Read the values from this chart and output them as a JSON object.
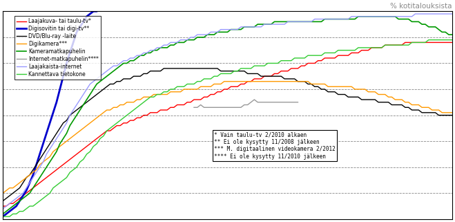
{
  "title": "% kotitalouksista",
  "ylim": [
    0,
    80
  ],
  "xlim": [
    0,
    134
  ],
  "yticks": [
    10,
    20,
    30,
    40,
    50,
    60,
    70,
    80
  ],
  "legend_entries": [
    {
      "label": "Laajakuva- tai taulu-tv*",
      "color": "#FF0000",
      "lw": 1.0
    },
    {
      "label": "Digisovitin tai digi-tv**",
      "color": "#0000CC",
      "lw": 2.0
    },
    {
      "label": "DVD/Blu-ray -laite",
      "color": "#000000",
      "lw": 1.0
    },
    {
      "label": "Digikamera***",
      "color": "#FF9900",
      "lw": 1.0
    },
    {
      "label": "Kameramatkapuhelin",
      "color": "#009900",
      "lw": 1.2
    },
    {
      "label": "Internet-matkapuhelin****",
      "color": "#999999",
      "lw": 1.0
    },
    {
      "label": "Laajakaista-internet",
      "color": "#9999FF",
      "lw": 1.0
    },
    {
      "label": "Kannettava tietokone",
      "color": "#33CC33",
      "lw": 1.0
    }
  ],
  "annotations": [
    "* Vain taulu-tv 2/2010 alkaen",
    "** Ei ole kysytty 11/2008 jälkeen",
    "*** M. digitaalinen videokamera 2/2012",
    "**** Ei ole kysytty 11/2010 jälkeen"
  ],
  "background_color": "#FFFFFF",
  "n_points": 135,
  "series": {
    "laajakuva": [
      5,
      5,
      6,
      6,
      7,
      8,
      9,
      10,
      11,
      12,
      13,
      14,
      15,
      16,
      17,
      18,
      19,
      20,
      21,
      22,
      23,
      24,
      25,
      26,
      27,
      28,
      29,
      30,
      31,
      32,
      33,
      34,
      34,
      35,
      36,
      36,
      37,
      37,
      38,
      38,
      39,
      39,
      40,
      40,
      41,
      41,
      41,
      42,
      42,
      42,
      43,
      43,
      44,
      44,
      44,
      45,
      45,
      46,
      46,
      46,
      47,
      47,
      48,
      48,
      49,
      49,
      50,
      50,
      51,
      51,
      51,
      52,
      52,
      53,
      53,
      54,
      54,
      54,
      55,
      55,
      55,
      56,
      56,
      57,
      57,
      57,
      58,
      58,
      58,
      59,
      59,
      60,
      60,
      60,
      61,
      61,
      62,
      62,
      62,
      62,
      63,
      63,
      63,
      63,
      64,
      64,
      64,
      65,
      65,
      65,
      66,
      66,
      66,
      66,
      67,
      67,
      67,
      67,
      67,
      67,
      68,
      68,
      68,
      68,
      68,
      68,
      68,
      68,
      68,
      68,
      68,
      68,
      68,
      68,
      68
    ],
    "digisovitin": [
      1,
      2,
      3,
      4,
      5,
      7,
      9,
      11,
      14,
      17,
      21,
      25,
      29,
      33,
      37,
      41,
      45,
      50,
      55,
      60,
      64,
      68,
      72,
      74,
      76,
      78,
      79,
      80,
      80,
      81,
      81,
      81,
      81,
      81,
      81,
      82,
      82,
      82,
      82,
      82,
      82,
      82,
      82,
      82,
      82,
      82,
      82,
      82,
      82,
      82,
      82,
      82,
      82,
      82,
      82,
      null,
      null,
      null,
      null,
      null,
      null,
      null,
      null,
      null,
      null,
      null,
      null,
      null,
      null,
      null,
      null,
      null,
      null,
      null,
      null,
      null,
      null,
      null,
      null,
      null,
      null,
      null,
      null,
      null,
      null,
      null,
      null,
      null,
      null,
      null,
      null,
      null,
      null,
      null,
      null,
      null,
      null,
      null,
      null,
      null,
      null,
      null,
      null,
      null,
      null,
      null,
      null,
      null,
      null,
      null,
      null,
      null,
      null,
      null,
      null,
      null,
      null,
      null,
      null,
      null,
      null,
      null,
      null,
      null,
      null,
      null,
      null,
      null,
      null,
      null,
      null,
      null,
      null,
      null,
      null
    ],
    "dvd": [
      7,
      8,
      9,
      10,
      11,
      12,
      14,
      16,
      17,
      19,
      21,
      23,
      25,
      27,
      29,
      31,
      33,
      35,
      37,
      38,
      40,
      41,
      42,
      43,
      44,
      45,
      46,
      47,
      48,
      49,
      50,
      51,
      52,
      52,
      53,
      53,
      54,
      54,
      54,
      55,
      55,
      55,
      56,
      56,
      57,
      57,
      57,
      57,
      58,
      58,
      58,
      58,
      58,
      58,
      58,
      58,
      58,
      58,
      58,
      58,
      58,
      58,
      58,
      58,
      58,
      57,
      57,
      57,
      57,
      57,
      57,
      57,
      57,
      56,
      56,
      56,
      56,
      55,
      55,
      55,
      55,
      55,
      55,
      55,
      54,
      54,
      54,
      54,
      53,
      53,
      53,
      52,
      52,
      51,
      51,
      50,
      50,
      49,
      49,
      49,
      48,
      48,
      48,
      47,
      47,
      47,
      47,
      46,
      46,
      46,
      46,
      46,
      45,
      45,
      45,
      45,
      44,
      44,
      44,
      44,
      43,
      43,
      42,
      42,
      42,
      41,
      41,
      41,
      41,
      41,
      40,
      40,
      40,
      40,
      40
    ],
    "digikamera": [
      10,
      11,
      12,
      12,
      13,
      14,
      15,
      16,
      17,
      18,
      19,
      21,
      22,
      23,
      24,
      26,
      27,
      28,
      29,
      30,
      31,
      32,
      33,
      34,
      35,
      36,
      37,
      38,
      39,
      40,
      41,
      42,
      42,
      43,
      43,
      44,
      44,
      45,
      45,
      45,
      46,
      46,
      47,
      47,
      47,
      48,
      48,
      48,
      48,
      48,
      49,
      49,
      49,
      49,
      50,
      50,
      50,
      50,
      50,
      51,
      51,
      51,
      51,
      52,
      52,
      52,
      53,
      53,
      53,
      53,
      53,
      53,
      53,
      53,
      53,
      53,
      53,
      53,
      53,
      53,
      53,
      53,
      53,
      53,
      53,
      53,
      53,
      53,
      53,
      53,
      53,
      53,
      52,
      52,
      52,
      52,
      52,
      51,
      51,
      51,
      51,
      51,
      51,
      51,
      51,
      50,
      50,
      50,
      50,
      49,
      49,
      49,
      48,
      48,
      48,
      47,
      47,
      46,
      46,
      46,
      45,
      45,
      44,
      44,
      44,
      43,
      43,
      43,
      42,
      42,
      42,
      41,
      41,
      41,
      41
    ],
    "kameramatkapuhelin": [
      2,
      3,
      4,
      5,
      6,
      7,
      8,
      9,
      10,
      12,
      14,
      16,
      18,
      20,
      22,
      24,
      26,
      29,
      31,
      33,
      36,
      38,
      40,
      42,
      44,
      46,
      48,
      50,
      52,
      53,
      54,
      55,
      56,
      57,
      58,
      59,
      60,
      60,
      61,
      61,
      62,
      63,
      63,
      64,
      64,
      65,
      65,
      66,
      66,
      66,
      67,
      67,
      68,
      68,
      68,
      69,
      69,
      69,
      70,
      70,
      70,
      71,
      71,
      71,
      72,
      72,
      72,
      72,
      73,
      73,
      73,
      73,
      74,
      74,
      74,
      74,
      75,
      75,
      75,
      75,
      75,
      76,
      76,
      76,
      76,
      76,
      76,
      76,
      76,
      76,
      76,
      76,
      76,
      76,
      76,
      76,
      77,
      77,
      77,
      77,
      77,
      77,
      77,
      77,
      77,
      77,
      78,
      78,
      78,
      78,
      78,
      78,
      78,
      78,
      78,
      78,
      78,
      78,
      77,
      77,
      77,
      77,
      76,
      76,
      76,
      75,
      75,
      74,
      74,
      74,
      73,
      72,
      72,
      71,
      71
    ],
    "internet_matkapuhelin": [
      null,
      null,
      null,
      null,
      null,
      null,
      null,
      null,
      null,
      null,
      null,
      null,
      null,
      null,
      null,
      null,
      null,
      null,
      null,
      null,
      null,
      null,
      null,
      null,
      null,
      null,
      null,
      null,
      null,
      null,
      null,
      null,
      null,
      null,
      null,
      null,
      null,
      null,
      null,
      null,
      null,
      null,
      null,
      null,
      null,
      null,
      null,
      null,
      null,
      null,
      null,
      null,
      null,
      null,
      null,
      null,
      null,
      43,
      43,
      44,
      43,
      43,
      43,
      43,
      43,
      43,
      43,
      43,
      43,
      43,
      43,
      43,
      44,
      44,
      45,
      46,
      45,
      45,
      45,
      45,
      45,
      45,
      45,
      45,
      45,
      45,
      45,
      45,
      45,
      null,
      null,
      null,
      null,
      null,
      null,
      null,
      null,
      null,
      null,
      null,
      null,
      null,
      null,
      null,
      null,
      null,
      null,
      null,
      null,
      null,
      null,
      null,
      null,
      null,
      null,
      null,
      null,
      null,
      null,
      null,
      null,
      null,
      null,
      null,
      null,
      null,
      null,
      null,
      null,
      null,
      null,
      null,
      null,
      null,
      null
    ],
    "laajakaista": [
      4,
      5,
      6,
      7,
      8,
      9,
      10,
      12,
      14,
      16,
      18,
      20,
      22,
      25,
      27,
      29,
      31,
      33,
      35,
      37,
      40,
      42,
      44,
      46,
      48,
      50,
      52,
      53,
      54,
      55,
      56,
      57,
      58,
      59,
      59,
      60,
      61,
      61,
      62,
      62,
      63,
      63,
      64,
      64,
      65,
      65,
      66,
      66,
      67,
      67,
      68,
      68,
      68,
      69,
      69,
      69,
      70,
      70,
      71,
      71,
      71,
      71,
      72,
      72,
      72,
      73,
      73,
      73,
      73,
      73,
      73,
      74,
      74,
      74,
      74,
      74,
      74,
      74,
      75,
      75,
      75,
      75,
      75,
      75,
      75,
      76,
      76,
      76,
      76,
      76,
      76,
      76,
      76,
      77,
      77,
      77,
      77,
      77,
      77,
      77,
      77,
      77,
      77,
      77,
      78,
      78,
      78,
      78,
      78,
      78,
      78,
      78,
      78,
      78,
      78,
      78,
      78,
      78,
      78,
      78,
      78,
      78,
      78,
      79,
      79,
      79,
      79,
      79,
      79,
      79,
      79,
      79,
      79,
      79,
      79
    ],
    "kannettava": [
      1,
      1,
      1,
      2,
      2,
      3,
      3,
      4,
      5,
      5,
      6,
      7,
      8,
      9,
      10,
      12,
      13,
      14,
      15,
      16,
      18,
      19,
      20,
      22,
      23,
      25,
      26,
      28,
      29,
      31,
      32,
      34,
      35,
      36,
      37,
      38,
      39,
      40,
      41,
      42,
      43,
      44,
      45,
      46,
      47,
      47,
      48,
      48,
      49,
      49,
      50,
      50,
      51,
      51,
      51,
      52,
      52,
      52,
      53,
      53,
      54,
      54,
      54,
      55,
      55,
      56,
      56,
      56,
      56,
      57,
      57,
      58,
      58,
      58,
      58,
      59,
      59,
      59,
      59,
      60,
      60,
      60,
      60,
      61,
      61,
      61,
      61,
      62,
      62,
      62,
      62,
      63,
      63,
      63,
      63,
      63,
      64,
      64,
      64,
      64,
      65,
      65,
      65,
      65,
      65,
      65,
      66,
      66,
      66,
      66,
      66,
      66,
      66,
      66,
      67,
      67,
      67,
      67,
      67,
      67,
      67,
      67,
      68,
      68,
      68,
      68,
      68,
      69,
      69,
      69,
      69,
      69,
      69,
      69,
      69
    ]
  }
}
